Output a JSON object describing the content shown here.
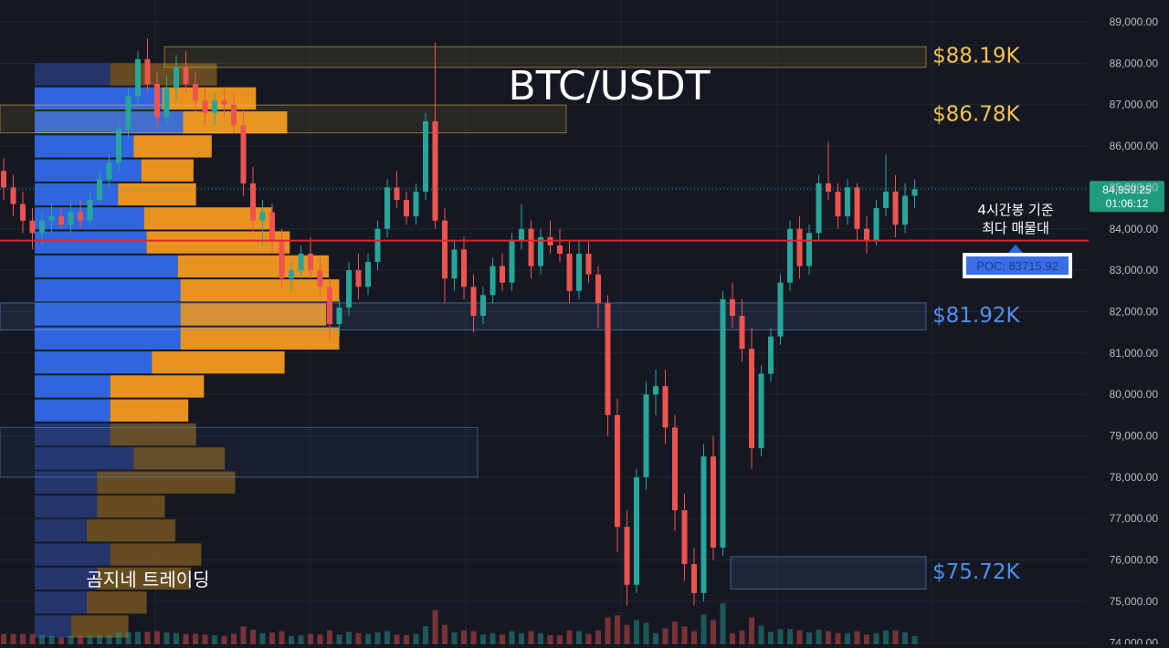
{
  "chart_data": {
    "type": "candlestick",
    "title": "BTC/USDT",
    "brand": "곰지네 트레이딩",
    "y_axis": {
      "min": 74000,
      "max": 89000,
      "ticks": [
        "89,000.00",
        "88,000.00",
        "87,000.00",
        "86,000.00",
        "85,000.00",
        "84,000.00",
        "83,000.00",
        "82,000.00",
        "81,000.00",
        "80,000.00",
        "79,000.00",
        "78,000.00",
        "77,000.00",
        "76,000.00",
        "75,000.00",
        "74,000.00"
      ],
      "tick_values": [
        89000,
        88000,
        87000,
        86000,
        85000,
        84000,
        83000,
        82000,
        81000,
        80000,
        79000,
        78000,
        77000,
        76000,
        75000,
        74000
      ]
    },
    "current_price": {
      "label": "84,959.25",
      "value": 84959.25,
      "countdown": "01:06:12"
    },
    "poc": {
      "label": "POC: 83715.92",
      "value": 83715.92,
      "note_line1": "4시간봉 기준",
      "note_line2": "최다 매물대"
    },
    "levels": [
      {
        "label": "$88.19K",
        "value": 88190,
        "color": "#f2c24f"
      },
      {
        "label": "$86.78K",
        "value": 86780,
        "color": "#f2c24f"
      },
      {
        "label": "$81.92K",
        "value": 81920,
        "color": "#4f8ff0"
      },
      {
        "label": "$75.72K",
        "value": 75720,
        "color": "#4f8ff0"
      }
    ],
    "zones": [
      {
        "kind": "resistance",
        "top": 88400,
        "bottom": 87900
      },
      {
        "kind": "resistance",
        "top": 86990,
        "bottom": 86320
      },
      {
        "kind": "support",
        "top": 82210,
        "bottom": 81560
      },
      {
        "kind": "support",
        "top": 76080,
        "bottom": 75300
      }
    ],
    "volume_profile": {
      "bin_top": 88000,
      "bin_size": 580,
      "buy": [
        0.29,
        0.49,
        0.57,
        0.38,
        0.41,
        0.32,
        0.42,
        0.43,
        0.55,
        0.56,
        0.56,
        0.56,
        0.45,
        0.29,
        0.29,
        0.29,
        0.38,
        0.24,
        0.24,
        0.2,
        0.29,
        0.24,
        0.2,
        0.14
      ],
      "sell": [
        0.41,
        0.36,
        0.4,
        0.3,
        0.2,
        0.3,
        0.49,
        0.55,
        0.58,
        0.61,
        0.56,
        0.61,
        0.51,
        0.36,
        0.3,
        0.33,
        0.35,
        0.53,
        0.26,
        0.34,
        0.35,
        0.36,
        0.23,
        0.22
      ]
    },
    "series": [
      {
        "name": "",
        "candles": [
          [
            85400,
            85700,
            84700,
            85000
          ],
          [
            85000,
            85300,
            84300,
            84600
          ],
          [
            84600,
            84900,
            83900,
            84200
          ],
          [
            84200,
            84500,
            83500,
            83900
          ],
          [
            83900,
            84400,
            83600,
            84200
          ],
          [
            84200,
            84600,
            83900,
            84300
          ],
          [
            84300,
            84500,
            84000,
            84100
          ],
          [
            84100,
            84600,
            83900,
            84400
          ],
          [
            84400,
            84700,
            84000,
            84200
          ],
          [
            84200,
            84900,
            84100,
            84700
          ],
          [
            84700,
            85400,
            84600,
            85200
          ],
          [
            85200,
            85800,
            85000,
            85600
          ],
          [
            85600,
            86600,
            85400,
            86400
          ],
          [
            86400,
            87400,
            86200,
            87200
          ],
          [
            87200,
            88300,
            87000,
            88100
          ],
          [
            88100,
            88600,
            87300,
            87500
          ],
          [
            87500,
            87800,
            86400,
            86700
          ],
          [
            86700,
            87700,
            86500,
            87400
          ],
          [
            87400,
            88200,
            87100,
            87900
          ],
          [
            87900,
            88300,
            87300,
            87500
          ],
          [
            87500,
            87800,
            86800,
            87100
          ],
          [
            87100,
            87400,
            86500,
            86800
          ],
          [
            86800,
            87300,
            86500,
            87100
          ],
          [
            87100,
            87400,
            86700,
            87000
          ],
          [
            87000,
            87300,
            86300,
            86500
          ],
          [
            86500,
            86900,
            84800,
            85100
          ],
          [
            85100,
            85500,
            83900,
            84200
          ],
          [
            84200,
            84700,
            83600,
            84400
          ],
          [
            84400,
            84600,
            83400,
            83700
          ],
          [
            83700,
            84000,
            82600,
            82800
          ],
          [
            82800,
            83200,
            82500,
            83000
          ],
          [
            83000,
            83600,
            82800,
            83400
          ],
          [
            83400,
            83800,
            82800,
            83000
          ],
          [
            83000,
            83300,
            82400,
            82600
          ],
          [
            82600,
            82800,
            81300,
            81700
          ],
          [
            81700,
            82300,
            81400,
            82100
          ],
          [
            82100,
            83200,
            81900,
            83000
          ],
          [
            83000,
            83400,
            82300,
            82600
          ],
          [
            82600,
            83400,
            82400,
            83200
          ],
          [
            83200,
            84200,
            83000,
            84000
          ],
          [
            84000,
            85200,
            83800,
            85000
          ],
          [
            85000,
            85400,
            84500,
            84700
          ],
          [
            84700,
            84900,
            84100,
            84300
          ],
          [
            84300,
            85100,
            84100,
            84900
          ],
          [
            84900,
            86800,
            84700,
            86600
          ],
          [
            86600,
            88500,
            84000,
            84200
          ],
          [
            84200,
            84500,
            82200,
            82800
          ],
          [
            82800,
            83700,
            82500,
            83500
          ],
          [
            83500,
            83800,
            82300,
            82600
          ],
          [
            82600,
            82900,
            81500,
            81900
          ],
          [
            81900,
            82600,
            81700,
            82400
          ],
          [
            82400,
            83300,
            82200,
            83100
          ],
          [
            83100,
            83400,
            82500,
            82700
          ],
          [
            82700,
            83900,
            82500,
            83700
          ],
          [
            83700,
            84600,
            83500,
            84000
          ],
          [
            84000,
            84200,
            82800,
            83100
          ],
          [
            83100,
            84000,
            82900,
            83800
          ],
          [
            83800,
            84200,
            83400,
            83600
          ],
          [
            83600,
            84000,
            83200,
            83400
          ],
          [
            83400,
            83700,
            82200,
            82500
          ],
          [
            82500,
            83700,
            82300,
            83400
          ],
          [
            83400,
            83700,
            82700,
            82900
          ],
          [
            82900,
            83100,
            81600,
            82200
          ],
          [
            82200,
            82400,
            79000,
            79500
          ],
          [
            79500,
            79900,
            76200,
            76800
          ],
          [
            76800,
            77200,
            74900,
            75400
          ],
          [
            75400,
            78200,
            75200,
            78000
          ],
          [
            78000,
            80300,
            77700,
            80000
          ],
          [
            80000,
            80600,
            79500,
            80200
          ],
          [
            80200,
            80600,
            78800,
            79200
          ],
          [
            79200,
            79500,
            76700,
            77200
          ],
          [
            77200,
            77600,
            75500,
            75900
          ],
          [
            75900,
            76300,
            74900,
            75200
          ],
          [
            75200,
            78800,
            75000,
            78500
          ],
          [
            78500,
            79000,
            76000,
            76300
          ],
          [
            76300,
            82500,
            76100,
            82300
          ],
          [
            82300,
            82700,
            81600,
            81900
          ],
          [
            81900,
            82300,
            80800,
            81100
          ],
          [
            81100,
            81600,
            78200,
            78700
          ],
          [
            78700,
            80700,
            78500,
            80500
          ],
          [
            80500,
            81600,
            80300,
            81400
          ],
          [
            81400,
            82900,
            81200,
            82700
          ],
          [
            82700,
            84200,
            82500,
            84000
          ],
          [
            84000,
            84300,
            82800,
            83100
          ],
          [
            83100,
            84100,
            82900,
            83900
          ],
          [
            83900,
            85300,
            83700,
            85100
          ],
          [
            85100,
            86100,
            84700,
            84900
          ],
          [
            84900,
            85100,
            84000,
            84300
          ],
          [
            84300,
            85200,
            84100,
            85000
          ],
          [
            85000,
            85100,
            83700,
            84000
          ],
          [
            84000,
            84300,
            83400,
            83700
          ],
          [
            83700,
            84700,
            83600,
            84500
          ],
          [
            84500,
            85800,
            84300,
            84900
          ],
          [
            84900,
            85300,
            83800,
            84100
          ],
          [
            84100,
            85100,
            83900,
            84800
          ],
          [
            84800,
            85200,
            84500,
            84959
          ]
        ]
      }
    ]
  }
}
